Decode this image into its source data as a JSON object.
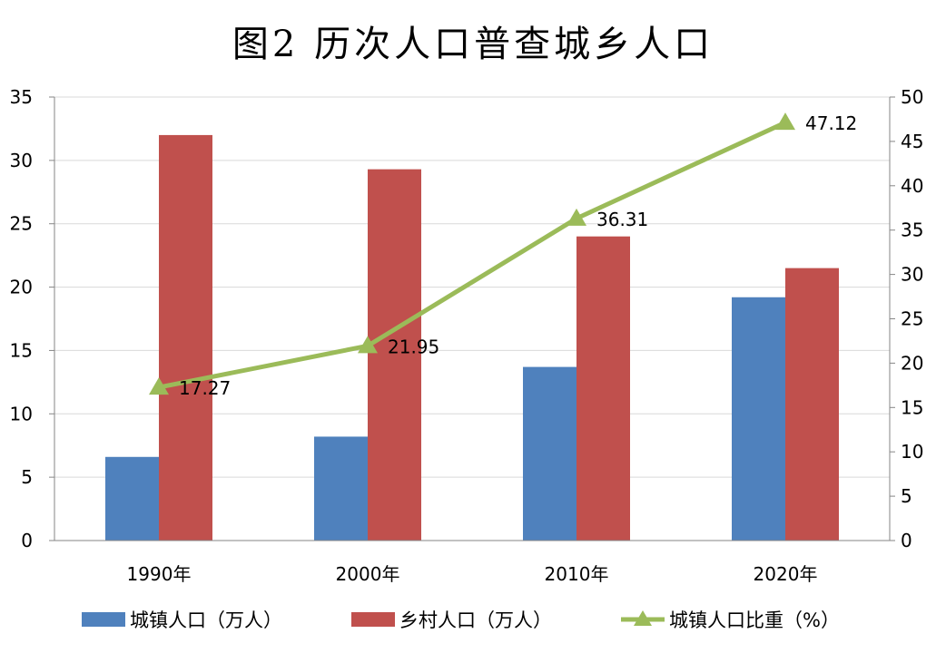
{
  "chart_data": {
    "type": "bar+line",
    "title": "图2  历次人口普查城乡人口",
    "categories": [
      "1990年",
      "2000年",
      "2010年",
      "2020年"
    ],
    "series": [
      {
        "name": "城镇人口（万人）",
        "type": "bar",
        "axis": "left",
        "color": "#4F81BD",
        "values": [
          6.6,
          8.2,
          13.7,
          19.2
        ]
      },
      {
        "name": "乡村人口（万人）",
        "type": "bar",
        "axis": "left",
        "color": "#C0504D",
        "values": [
          32.0,
          29.3,
          24.0,
          21.5
        ]
      },
      {
        "name": "城镇人口比重（%）",
        "type": "line",
        "axis": "right",
        "color": "#9BBB59",
        "marker": "triangle",
        "values": [
          17.27,
          21.95,
          36.31,
          47.12
        ],
        "data_labels": [
          "17.27",
          "21.95",
          "36.31",
          "47.12"
        ]
      }
    ],
    "y_left": {
      "ylim": [
        0,
        35
      ],
      "ticks": [
        0,
        5,
        10,
        15,
        20,
        25,
        30,
        35
      ]
    },
    "y_right": {
      "ylim": [
        0,
        50
      ],
      "ticks": [
        0,
        5,
        10,
        15,
        20,
        25,
        30,
        35,
        40,
        45,
        50
      ]
    },
    "grid": true,
    "legend": "bottom"
  }
}
